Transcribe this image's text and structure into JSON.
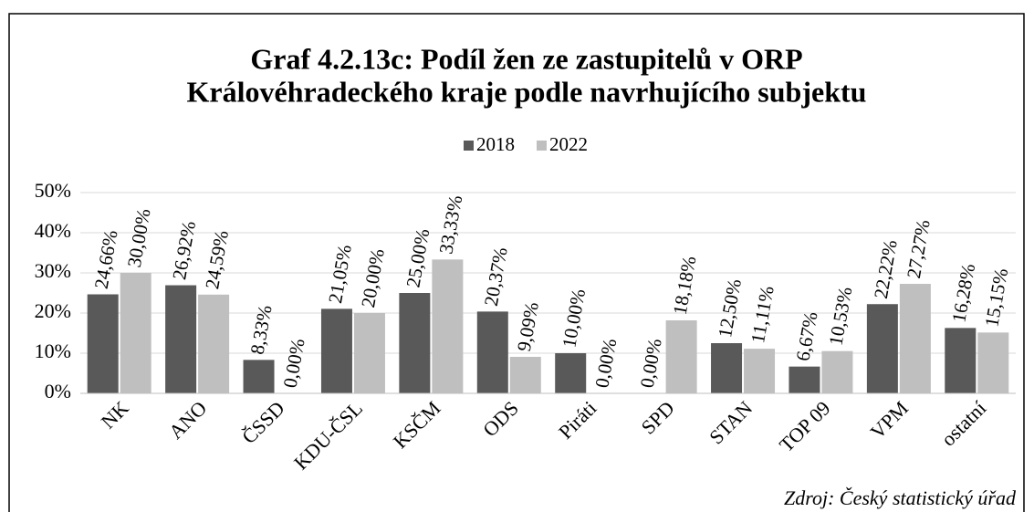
{
  "chart_data": {
    "type": "bar",
    "title": [
      "Graf 4.2.13c: Podíl žen ze zastupitelů v ORP",
      "Královéhradeckého kraje podle navrhujícího subjektu"
    ],
    "categories": [
      "NK",
      "ANO",
      "ČSSD",
      "KDU-ČSL",
      "KSČM",
      "ODS",
      "Piráti",
      "SPD",
      "STAN",
      "TOP 09",
      "VPM",
      "ostatní"
    ],
    "series": [
      {
        "name": "2018",
        "color": "#595959",
        "values": [
          24.66,
          26.92,
          8.33,
          21.05,
          25.0,
          20.37,
          10.0,
          0.0,
          12.5,
          6.67,
          22.22,
          16.28
        ],
        "value_labels": [
          "24,66%",
          "26,92%",
          "8,33%",
          "21,05%",
          "25,00%",
          "20,37%",
          "10,00%",
          "0,00%",
          "12,50%",
          "6,67%",
          "22,22%",
          "16,28%"
        ]
      },
      {
        "name": "2022",
        "color": "#bfbfbf",
        "values": [
          30.0,
          24.59,
          0.0,
          20.0,
          33.33,
          9.09,
          0.0,
          18.18,
          11.11,
          10.53,
          27.27,
          15.15
        ],
        "value_labels": [
          "30,00%",
          "24,59%",
          "0,00%",
          "20,00%",
          "33,33%",
          "9,09%",
          "0,00%",
          "18,18%",
          "11,11%",
          "10,53%",
          "27,27%",
          "15,15%"
        ]
      }
    ],
    "ylim": [
      0,
      50
    ],
    "yticks": [
      {
        "value": 0,
        "label": "0%"
      },
      {
        "value": 10,
        "label": "10%"
      },
      {
        "value": 20,
        "label": "20%"
      },
      {
        "value": 30,
        "label": "30%"
      },
      {
        "value": 40,
        "label": "40%"
      },
      {
        "value": 50,
        "label": "50%"
      }
    ],
    "grid": true,
    "legend": "top",
    "source": "Zdroj: Český statistický úřad"
  }
}
